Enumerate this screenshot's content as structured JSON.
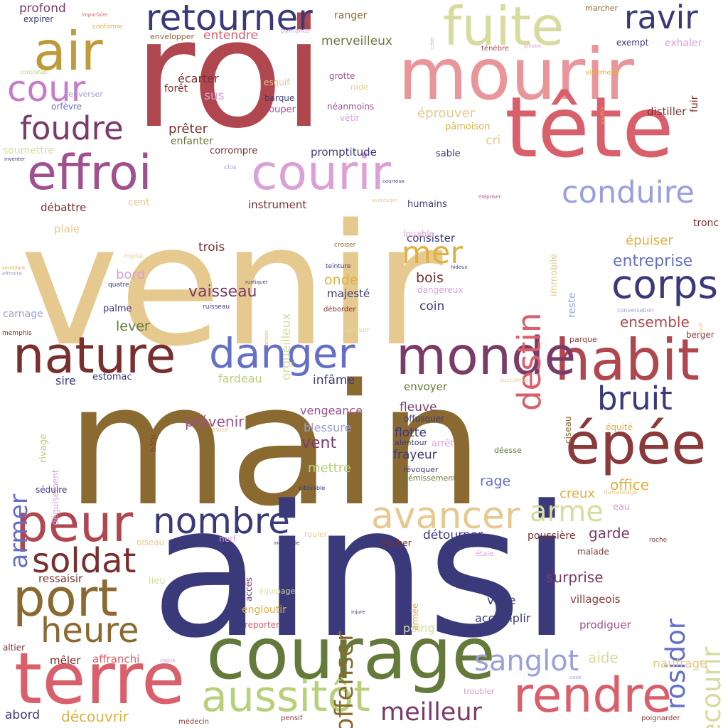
{
  "words": [
    {
      "text": "venir",
      "color": "#e6c98f"
    },
    {
      "text": "main",
      "color": "#8a6a30"
    },
    {
      "text": "ainsi",
      "color": "#3a3a7a"
    },
    {
      "text": "roi",
      "color": "#b0464e"
    },
    {
      "text": "mourir",
      "color": "#e9959a"
    },
    {
      "text": "tête",
      "color": "#d95f6b"
    },
    {
      "text": "courage",
      "color": "#647a3a"
    },
    {
      "text": "terre",
      "color": "#d95f6b"
    },
    {
      "text": "épée",
      "color": "#8a3a3a"
    },
    {
      "text": "habit",
      "color": "#b0464e"
    },
    {
      "text": "monde",
      "color": "#7a3a6a"
    },
    {
      "text": "nature",
      "color": "#7a2f2f"
    },
    {
      "text": "effroi",
      "color": "#a0508f"
    },
    {
      "text": "courir",
      "color": "#dca0d6"
    },
    {
      "text": "air",
      "color": "#c09a3a"
    },
    {
      "text": "fuite",
      "color": "#d6dc9e"
    },
    {
      "text": "port",
      "color": "#8a6a30"
    },
    {
      "text": "peur",
      "color": "#b0464e"
    },
    {
      "text": "rendre",
      "color": "#d95f6b"
    },
    {
      "text": "aussitôt",
      "color": "#b8d07a"
    },
    {
      "text": "danger",
      "color": "#6470c8"
    },
    {
      "text": "corps",
      "color": "#3a3a7a"
    },
    {
      "text": "retourner",
      "color": "#3a3a7a"
    },
    {
      "text": "avancer",
      "color": "#e6c98f"
    },
    {
      "text": "nombre",
      "color": "#3a3a7a"
    },
    {
      "text": "heure",
      "color": "#8a6a30"
    },
    {
      "text": "soldat",
      "color": "#7a2f2f"
    },
    {
      "text": "foudre",
      "color": "#7a3a6a"
    },
    {
      "text": "cour",
      "color": "#c87ac8"
    },
    {
      "text": "ravir",
      "color": "#3a3a7a"
    },
    {
      "text": "conduire",
      "color": "#9aa0dc"
    },
    {
      "text": "bruit",
      "color": "#3a3a7a"
    },
    {
      "text": "mer",
      "color": "#e0b040"
    },
    {
      "text": "arme",
      "color": "#d6dc9e"
    },
    {
      "text": "sanglot",
      "color": "#9aa0dc"
    },
    {
      "text": "meilleur",
      "color": "#7a3a6a"
    },
    {
      "text": "destin",
      "color": "#d95f6b"
    },
    {
      "text": "rosidor",
      "color": "#6470c8"
    },
    {
      "text": "secourir",
      "color": "#d6dc9e"
    },
    {
      "text": "offenser",
      "color": "#8a6a30"
    },
    {
      "text": "armer",
      "color": "#6470c8"
    },
    {
      "text": "vaisseau",
      "color": "#7a3a6a"
    },
    {
      "text": "entreprise",
      "color": "#6470c8"
    },
    {
      "text": "épuiser",
      "color": "#e0b040"
    },
    {
      "text": "ensemble",
      "color": "#b0464e"
    },
    {
      "text": "garde",
      "color": "#7a3a6a"
    },
    {
      "text": "surprise",
      "color": "#7a3a6a"
    },
    {
      "text": "voile",
      "color": "#3a3a7a"
    },
    {
      "text": "accomplir",
      "color": "#3a3a7a"
    },
    {
      "text": "prodiguer",
      "color": "#a0508f"
    },
    {
      "text": "villageois",
      "color": "#8a3a3a"
    },
    {
      "text": "aide",
      "color": "#d6dc9e"
    },
    {
      "text": "naufrage",
      "color": "#e6c98f"
    },
    {
      "text": "office",
      "color": "#e0b040"
    },
    {
      "text": "creux",
      "color": "#e0b040"
    },
    {
      "text": "eau",
      "color": "#dca0d6"
    },
    {
      "text": "malade",
      "color": "#8a3a3a"
    },
    {
      "text": "poussière",
      "color": "#7a2f2f"
    },
    {
      "text": "détourner",
      "color": "#3a3a7a"
    },
    {
      "text": "rage",
      "color": "#6470c8"
    },
    {
      "text": "vent",
      "color": "#7a3a6a"
    },
    {
      "text": "mettre",
      "color": "#b8d07a"
    },
    {
      "text": "frayeur",
      "color": "#3a3a7a"
    },
    {
      "text": "flotte",
      "color": "#3a3a7a"
    },
    {
      "text": "fleuve",
      "color": "#7a3a6a"
    },
    {
      "text": "envoyer",
      "color": "#647a3a"
    },
    {
      "text": "blessure",
      "color": "#9aa0dc"
    },
    {
      "text": "vengeance",
      "color": "#a0508f"
    },
    {
      "text": "prévenir",
      "color": "#a0508f"
    },
    {
      "text": "infâme",
      "color": "#3a3a7a"
    },
    {
      "text": "fardeau",
      "color": "#b8d07a"
    },
    {
      "text": "sire",
      "color": "#3a3a7a"
    },
    {
      "text": "estomac",
      "color": "#3a3a7a"
    },
    {
      "text": "coin",
      "color": "#3a3a7a"
    },
    {
      "text": "bois",
      "color": "#7a2f2f"
    },
    {
      "text": "onde",
      "color": "#e0b040"
    },
    {
      "text": "majesté",
      "color": "#3a3a7a"
    },
    {
      "text": "consister",
      "color": "#3a3a7a"
    },
    {
      "text": "humains",
      "color": "#3a3a7a"
    },
    {
      "text": "instrument",
      "color": "#7a2f2f"
    },
    {
      "text": "trois",
      "color": "#7a2f2f"
    },
    {
      "text": "lever",
      "color": "#647a3a"
    },
    {
      "text": "palme",
      "color": "#3a3a7a"
    },
    {
      "text": "bord",
      "color": "#dca0d6"
    },
    {
      "text": "plaie",
      "color": "#e6c98f"
    },
    {
      "text": "débattre",
      "color": "#7a2f2f"
    },
    {
      "text": "cent",
      "color": "#e6c98f"
    },
    {
      "text": "promptitude",
      "color": "#3a3a7a"
    },
    {
      "text": "cri",
      "color": "#e6c98f"
    },
    {
      "text": "éprouver",
      "color": "#e6c98f"
    },
    {
      "text": "pâmoison",
      "color": "#e0b040"
    },
    {
      "text": "sable",
      "color": "#3a3a7a"
    },
    {
      "text": "merveilleux",
      "color": "#647a3a"
    },
    {
      "text": "entendre",
      "color": "#d95f6b"
    },
    {
      "text": "prêter",
      "color": "#7a2f2f"
    },
    {
      "text": "enfanter",
      "color": "#647a3a"
    },
    {
      "text": "corrompre",
      "color": "#7a2f2f"
    },
    {
      "text": "écarter",
      "color": "#7a2f2f"
    },
    {
      "text": "forêt",
      "color": "#7a2f2f"
    },
    {
      "text": "sus",
      "color": "#dca0d6"
    },
    {
      "text": "profond",
      "color": "#7a3a6a"
    },
    {
      "text": "expirer",
      "color": "#3a3a7a"
    },
    {
      "text": "distiller",
      "color": "#7a2f2f"
    },
    {
      "text": "exhaler",
      "color": "#dca0d6"
    },
    {
      "text": "exempt",
      "color": "#3a3a7a"
    },
    {
      "text": "ranger",
      "color": "#8a6a30"
    },
    {
      "text": "grotte",
      "color": "#a0508f"
    },
    {
      "text": "barque",
      "color": "#3a3a7a"
    },
    {
      "text": "couper",
      "color": "#a0508f"
    },
    {
      "text": "esquif",
      "color": "#e6c98f"
    },
    {
      "text": "néanmoins",
      "color": "#a0508f"
    },
    {
      "text": "vêtir",
      "color": "#dca0d6"
    },
    {
      "text": "rade",
      "color": "#e6c98f"
    },
    {
      "text": "envelopper",
      "color": "#8a6a30"
    },
    {
      "text": "marcher",
      "color": "#8a6a30"
    },
    {
      "text": "fuir",
      "color": "#7a2f2f"
    },
    {
      "text": "tronc",
      "color": "#7a2f2f"
    },
    {
      "text": "immobile",
      "color": "#e6c98f"
    },
    {
      "text": "reste",
      "color": "#9aa0dc"
    },
    {
      "text": "orgueilleux",
      "color": "#d6dc9e"
    },
    {
      "text": "dangereux",
      "color": "#dca0d6"
    },
    {
      "text": "louable",
      "color": "#dca0d6"
    },
    {
      "text": "carnage",
      "color": "#9aa0dc"
    },
    {
      "text": "soumettre",
      "color": "#d6dc9e"
    },
    {
      "text": "orfèvre",
      "color": "#6470c8"
    },
    {
      "text": "renverser",
      "color": "#9aa0dc"
    },
    {
      "text": "berger",
      "color": "#8a3a3a"
    },
    {
      "text": "parque",
      "color": "#8a3a3a"
    },
    {
      "text": "ciseau",
      "color": "#8a6a30"
    },
    {
      "text": "rivage",
      "color": "#b8d07a"
    },
    {
      "text": "déguisement",
      "color": "#dca0d6"
    },
    {
      "text": "séduire",
      "color": "#3a3a7a"
    },
    {
      "text": "bâtir",
      "color": "#8a3a3a"
    },
    {
      "text": "offusquer",
      "color": "#3a3a7a"
    },
    {
      "text": "alentour",
      "color": "#3a3a7a"
    },
    {
      "text": "arrêt",
      "color": "#dca0d6"
    },
    {
      "text": "révoquer",
      "color": "#3a3a7a"
    },
    {
      "text": "gémissement",
      "color": "#647a3a"
    },
    {
      "text": "déesse",
      "color": "#647a3a"
    },
    {
      "text": "équité",
      "color": "#e0b040"
    },
    {
      "text": "oiseau",
      "color": "#e6c98f"
    },
    {
      "text": "nerf",
      "color": "#dca0d6"
    },
    {
      "text": "accès",
      "color": "#7a3a6a"
    },
    {
      "text": "lieu",
      "color": "#d6dc9e"
    },
    {
      "text": "ressaisir",
      "color": "#7a2f2f"
    },
    {
      "text": "mêler",
      "color": "#7a2f2f"
    },
    {
      "text": "affranchi",
      "color": "#d95f6b"
    },
    {
      "text": "altier",
      "color": "#7a2f2f"
    },
    {
      "text": "abord",
      "color": "#3a3a7a"
    },
    {
      "text": "découvrir",
      "color": "#e0b040"
    },
    {
      "text": "engloutir",
      "color": "#e0b040"
    },
    {
      "text": "reporter",
      "color": "#d95f6b"
    },
    {
      "text": "poing",
      "color": "#d6dc9e"
    },
    {
      "text": "bûcher",
      "color": "#7a2f2f"
    },
    {
      "text": "armée",
      "color": "#e0b040"
    },
    {
      "text": "troubler",
      "color": "#dca0d6"
    },
    {
      "text": "médecin",
      "color": "#8a3a3a"
    },
    {
      "text": "pensif",
      "color": "#8a3a3a"
    },
    {
      "text": "poignarder",
      "color": "#8a3a3a"
    },
    {
      "text": "rouler",
      "color": "#e6c98f"
    },
    {
      "text": "équipage",
      "color": "#d6dc9e"
    },
    {
      "text": "étale",
      "color": "#dca0d6"
    },
    {
      "text": "roche",
      "color": "#8a3a3a"
    },
    {
      "text": "davantage",
      "color": "#e6c98f"
    },
    {
      "text": "conversation",
      "color": "#9aa0dc"
    },
    {
      "text": "jouir",
      "color": "#e6c98f"
    },
    {
      "text": "succomber",
      "color": "#e6c98f"
    },
    {
      "text": "avisé",
      "color": "#e6c98f"
    },
    {
      "text": "pitoyable",
      "color": "#3a3a7a"
    },
    {
      "text": "incroyable",
      "color": "#3a3a7a"
    },
    {
      "text": "injure",
      "color": "#3a3a7a"
    },
    {
      "text": "vague",
      "color": "#dca0d6"
    },
    {
      "text": "vase",
      "color": "#9aa0dc"
    },
    {
      "text": "imparfaire",
      "color": "#d95f6b"
    },
    {
      "text": "conforme",
      "color": "#e0b040"
    },
    {
      "text": "pymante",
      "color": "#dca0d6"
    },
    {
      "text": "céler",
      "color": "#dca0d6"
    },
    {
      "text": "ténèbre",
      "color": "#b0464e"
    },
    {
      "text": "joindre",
      "color": "#dca0d6"
    },
    {
      "text": "vivement",
      "color": "#e0b040"
    },
    {
      "text": "souffrir",
      "color": "#e0b040"
    },
    {
      "text": "contrefait",
      "color": "#b8d07a"
    },
    {
      "text": "inventer",
      "color": "#3a3a7a"
    },
    {
      "text": "clos",
      "color": "#9aa0dc"
    },
    {
      "text": "courroux",
      "color": "#3a3a7a"
    },
    {
      "text": "avantager",
      "color": "#e6c98f"
    },
    {
      "text": "mépriser",
      "color": "#a0508f"
    },
    {
      "text": "myrte",
      "color": "#e6c98f"
    },
    {
      "text": "quatre",
      "color": "#3a3a7a"
    },
    {
      "text": "semblant",
      "color": "#e0b040"
    },
    {
      "text": "effronté",
      "color": "#9aa0dc"
    },
    {
      "text": "rustiquer",
      "color": "#3a3a7a"
    },
    {
      "text": "ruisseau",
      "color": "#3a3a7a"
    },
    {
      "text": "prison",
      "color": "#e0b040"
    },
    {
      "text": "croiser",
      "color": "#8a6a30"
    },
    {
      "text": "teinture",
      "color": "#3a3a7a"
    },
    {
      "text": "hideux",
      "color": "#3a3a7a"
    },
    {
      "text": "déborder",
      "color": "#7a2f2f"
    },
    {
      "text": "passer",
      "color": "#d6dc9e"
    },
    {
      "text": "memphis",
      "color": "#7a2f2f"
    }
  ]
}
